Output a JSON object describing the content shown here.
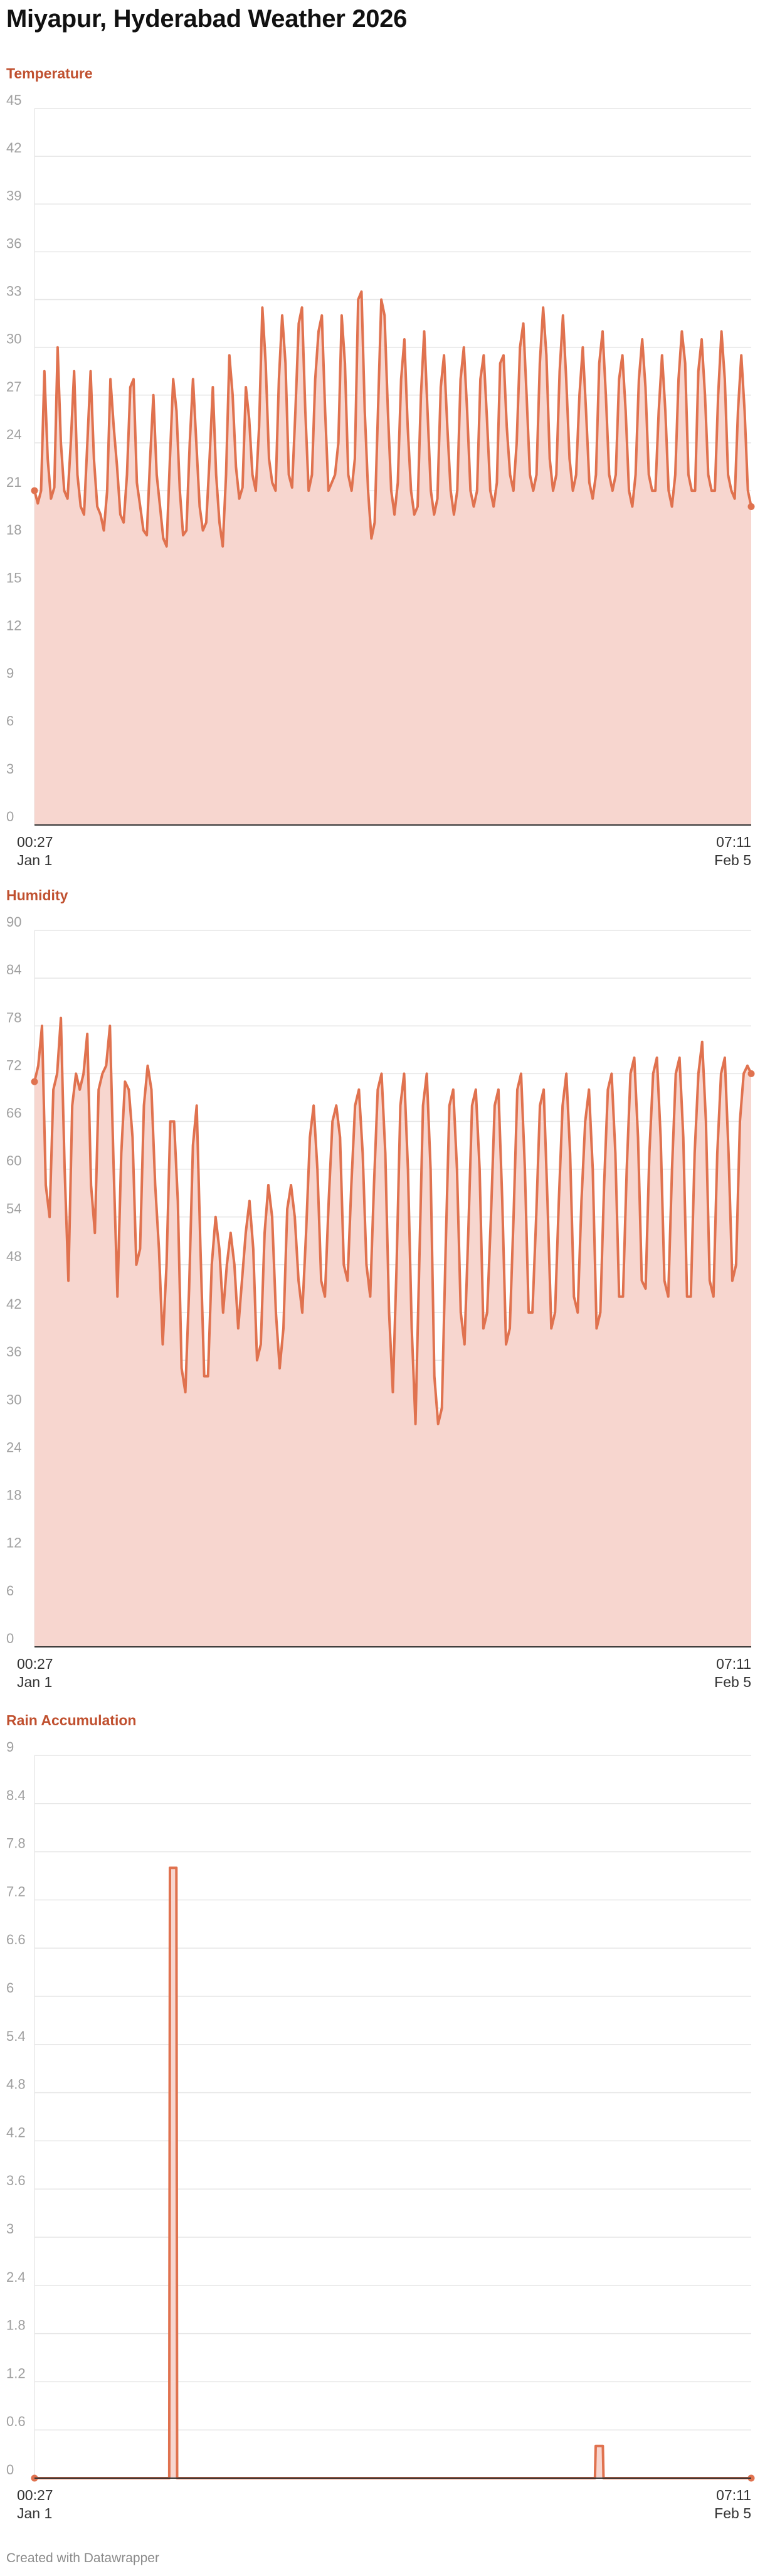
{
  "page_title": "Miyapur, Hyderabad Weather 2026",
  "credit": "Created with Datawrapper",
  "colors": {
    "line": "#e0724f",
    "fill": "#f7d6cf",
    "title": "#c0502f",
    "grid": "#e6e6e6",
    "axis": "#333333"
  },
  "chart_data": [
    {
      "type": "area",
      "title": "Temperature",
      "ylim": [
        0,
        45
      ],
      "yticks": [
        "0",
        "3",
        "6",
        "9",
        "12",
        "15",
        "18",
        "21",
        "24",
        "27",
        "30",
        "33",
        "36",
        "39",
        "42",
        "45"
      ],
      "xticks": [
        {
          "time": "00:27",
          "date": "Jan 1"
        },
        {
          "time": "07:11",
          "date": "Feb 5"
        }
      ],
      "x_range": [
        "Jan 1 00:27",
        "Feb 5 07:11"
      ],
      "grid": true,
      "series": [
        {
          "values": [
            21,
            20.2,
            21,
            28.5,
            23,
            20.5,
            21.2,
            30,
            24,
            21,
            20.5,
            24,
            28.5,
            22,
            20,
            19.5,
            24,
            28.5,
            23,
            20,
            19.5,
            18.5,
            21,
            28,
            25,
            22.5,
            19.5,
            19,
            22,
            27.5,
            28,
            21.5,
            20,
            18.5,
            18.2,
            23,
            27,
            22,
            20,
            18,
            17.5,
            23,
            28,
            26,
            21,
            18.2,
            18.5,
            24,
            28,
            24,
            20,
            18.5,
            19,
            23,
            27.5,
            22,
            19,
            17.5,
            22,
            29.5,
            27,
            22.5,
            20.5,
            21.2,
            27.5,
            25.5,
            22,
            21,
            25,
            32.5,
            29,
            23,
            21.5,
            21,
            28,
            32,
            29,
            22,
            21.2,
            26,
            31.5,
            32.5,
            26,
            21,
            22,
            28,
            31,
            32,
            26,
            21,
            21.5,
            22,
            24,
            32,
            29,
            22,
            21,
            23,
            33,
            33.5,
            26,
            21,
            18,
            19,
            26,
            33,
            32,
            26,
            21,
            19.5,
            21.5,
            28,
            30.5,
            25,
            21,
            19.5,
            20,
            27,
            31,
            26,
            21,
            19.5,
            20.5,
            27.5,
            29.5,
            25,
            21,
            19.5,
            21,
            28,
            30,
            26,
            21,
            20,
            21,
            28,
            29.5,
            25.5,
            21,
            20,
            21.5,
            29,
            29.5,
            25,
            22,
            21,
            24,
            30,
            31.5,
            27,
            22,
            21,
            22,
            29,
            32.5,
            29.5,
            23,
            21,
            22,
            28.5,
            32,
            28,
            23,
            21,
            22,
            27,
            30,
            26,
            21.5,
            20.5,
            22,
            29,
            31,
            27,
            22,
            21,
            22,
            28,
            29.5,
            26,
            21,
            20,
            22,
            28,
            30.5,
            27.5,
            22,
            21,
            21,
            26,
            29.5,
            26,
            21,
            20,
            22,
            28,
            31,
            29,
            22,
            21,
            21,
            28.5,
            30.5,
            27,
            22,
            21,
            21,
            27,
            31,
            28,
            22,
            21,
            20.5,
            26,
            29.5,
            26,
            21,
            20
          ]
        }
      ]
    },
    {
      "type": "area",
      "title": "Humidity",
      "ylim": [
        0,
        90
      ],
      "yticks": [
        "0",
        "6",
        "12",
        "18",
        "24",
        "30",
        "36",
        "42",
        "48",
        "54",
        "60",
        "66",
        "72",
        "78",
        "84",
        "90"
      ],
      "xticks": [
        {
          "time": "00:27",
          "date": "Jan 1"
        },
        {
          "time": "07:11",
          "date": "Feb 5"
        }
      ],
      "x_range": [
        "Jan 1 00:27",
        "Feb 5 07:11"
      ],
      "grid": true,
      "series": [
        {
          "values": [
            71,
            73,
            78,
            58,
            54,
            70,
            72,
            79,
            60,
            46,
            68,
            72,
            70,
            72,
            77,
            58,
            52,
            70,
            72,
            73,
            78,
            60,
            44,
            62,
            71,
            70,
            64,
            48,
            50,
            68,
            73,
            70,
            58,
            50,
            38,
            48,
            66,
            66,
            56,
            35,
            32,
            45,
            63,
            68,
            50,
            34,
            34,
            48,
            54,
            50,
            42,
            48,
            52,
            48,
            40,
            46,
            52,
            56,
            50,
            36,
            38,
            52,
            58,
            54,
            42,
            35,
            40,
            55,
            58,
            54,
            46,
            42,
            52,
            64,
            68,
            60,
            46,
            44,
            56,
            66,
            68,
            64,
            48,
            46,
            58,
            68,
            70,
            62,
            48,
            44,
            58,
            70,
            72,
            62,
            42,
            32,
            48,
            68,
            72,
            60,
            40,
            28,
            48,
            68,
            72,
            60,
            34,
            28,
            30,
            50,
            68,
            70,
            60,
            42,
            38,
            52,
            68,
            70,
            60,
            40,
            42,
            54,
            68,
            70,
            56,
            38,
            40,
            54,
            70,
            72,
            60,
            42,
            42,
            54,
            68,
            70,
            56,
            40,
            42,
            56,
            68,
            72,
            62,
            44,
            42,
            56,
            66,
            70,
            60,
            40,
            42,
            58,
            70,
            72,
            62,
            44,
            44,
            60,
            72,
            74,
            64,
            46,
            45,
            62,
            72,
            74,
            64,
            46,
            44,
            60,
            72,
            74,
            64,
            44,
            44,
            62,
            72,
            76,
            66,
            46,
            44,
            62,
            72,
            74,
            62,
            46,
            48,
            66,
            72,
            73,
            72
          ]
        }
      ]
    },
    {
      "type": "area",
      "title": "Rain Accumulation",
      "ylim": [
        0,
        9
      ],
      "yticks": [
        "0",
        "0.6",
        "1.2",
        "1.8",
        "2.4",
        "3",
        "3.6",
        "4.2",
        "4.8",
        "5.4",
        "6",
        "6.6",
        "7.2",
        "7.8",
        "8.4",
        "9"
      ],
      "xticks": [
        {
          "time": "00:27",
          "date": "Jan 1"
        },
        {
          "time": "07:11",
          "date": "Feb 5"
        }
      ],
      "x_range": [
        "Jan 1 00:27",
        "Feb 5 07:11"
      ],
      "grid": true,
      "series": [
        {
          "points": [
            [
              0,
              0
            ],
            [
              0.188,
              0
            ],
            [
              0.189,
              7.6
            ],
            [
              0.198,
              7.6
            ],
            [
              0.199,
              0
            ],
            [
              0.782,
              0
            ],
            [
              0.783,
              0.4
            ],
            [
              0.793,
              0.4
            ],
            [
              0.794,
              0
            ],
            [
              1,
              0
            ]
          ]
        }
      ]
    }
  ]
}
